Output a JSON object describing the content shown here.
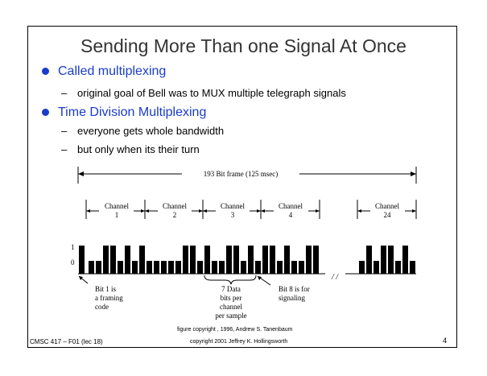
{
  "title": "Sending More Than one Signal At Once",
  "bullets": [
    {
      "label": "Called multiplexing",
      "subs": [
        "original goal of Bell was to MUX multiple telegraph signals"
      ]
    },
    {
      "label": "Time Division Multiplexing",
      "subs": [
        "everyone gets whole bandwidth",
        "but only when its their turn"
      ]
    }
  ],
  "diagram": {
    "frame_label": "193 Bit frame  (125 msec)",
    "channels": [
      {
        "name": "Channel",
        "num": "1"
      },
      {
        "name": "Channel",
        "num": "2"
      },
      {
        "name": "Channel",
        "num": "3"
      },
      {
        "name": "Channel",
        "num": "4"
      },
      {
        "name": "Channel",
        "num": "24"
      }
    ],
    "level_one": "1",
    "level_zero": "0",
    "break_mark": "/ /",
    "bits": {
      "framing": 1,
      "ch1": [
        0,
        0,
        1,
        1,
        0,
        1,
        0,
        1
      ],
      "ch2": [
        0,
        0,
        0,
        0,
        0,
        1,
        1,
        0
      ],
      "ch3": [
        1,
        0,
        0,
        1,
        1,
        0,
        1,
        0
      ],
      "ch4": [
        1,
        1,
        0,
        1,
        0,
        0,
        1,
        1
      ],
      "ch24": [
        0,
        1,
        0,
        1,
        1,
        0,
        1,
        0
      ]
    },
    "annotations": {
      "framing": [
        "Bit 1 is",
        "a framing",
        "code"
      ],
      "data": [
        "7 Data",
        "bits per",
        "channel",
        "per sample"
      ],
      "signaling": [
        "Bit 8 is for",
        "signaling"
      ]
    }
  },
  "footer": {
    "course": "CMSC 417 – F01  (lec 18)",
    "copyright1": "figure copyright , 1996, Andrew S. Tanenbaum",
    "copyright2": "copyright 2001 Jeffrey K. Hollingsworth",
    "page": "4"
  }
}
